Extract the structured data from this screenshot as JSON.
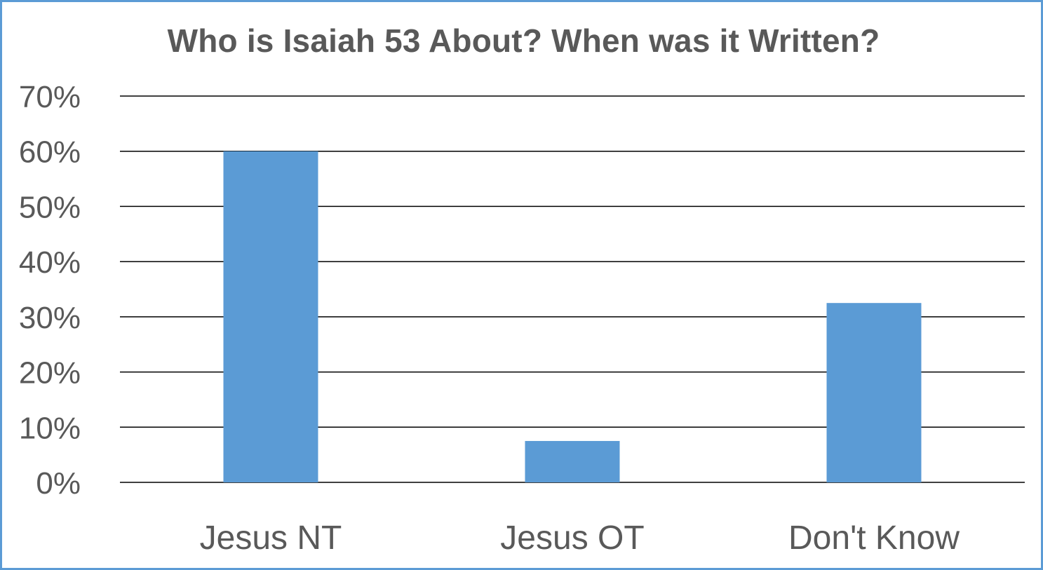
{
  "chart_data": {
    "type": "bar",
    "title": "Who is Isaiah 53 About? When was it Written?",
    "categories": [
      "Jesus NT",
      "Jesus OT",
      "Don't Know"
    ],
    "values": [
      60,
      7.5,
      32.5
    ],
    "value_unit": "%",
    "ylim": [
      0,
      70
    ],
    "yticks": [
      "0%",
      "10%",
      "20%",
      "30%",
      "40%",
      "50%",
      "60%",
      "70%"
    ],
    "grid": true,
    "legend": "none",
    "bar_color": "#5b9bd5",
    "border_color": "#5b9bd5",
    "text_color": "#595959"
  }
}
